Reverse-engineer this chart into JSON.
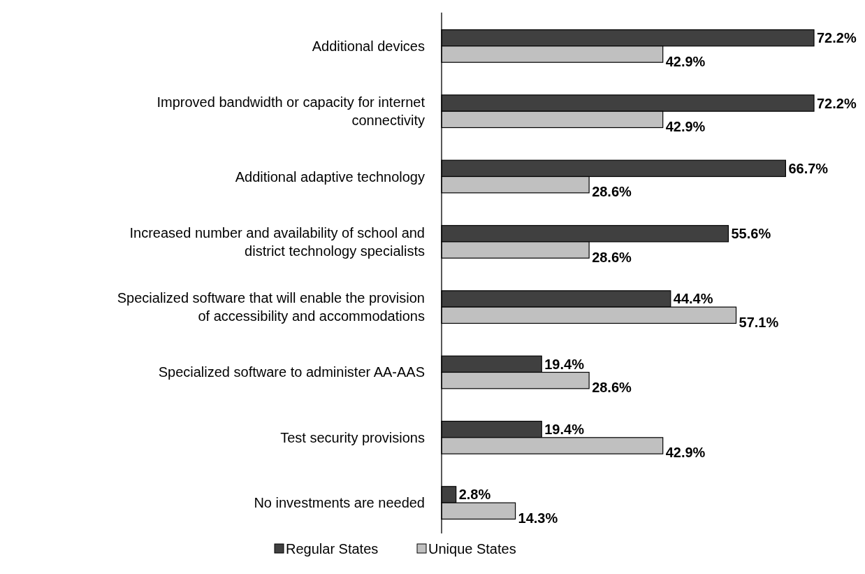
{
  "chart_data": {
    "type": "bar",
    "orientation": "horizontal",
    "categories": [
      "Additional devices",
      "Improved bandwidth or capacity for internet connectivity",
      "Additional adaptive technology",
      "Increased number and availability of school and district technology specialists",
      "Specialized software that will enable the provision of accessibility and accommodations",
      "Specialized software to administer AA-AAS",
      "Test security provisions",
      "No investments are needed"
    ],
    "series": [
      {
        "name": "Regular States",
        "color": "#404040",
        "values": [
          72.2,
          72.2,
          66.7,
          55.6,
          44.4,
          19.4,
          19.4,
          2.8
        ],
        "value_labels": [
          "72.2%",
          "72.2%",
          "66.7%",
          "55.6%",
          "44.4%",
          "19.4%",
          "19.4%",
          "2.8%"
        ]
      },
      {
        "name": "Unique States",
        "color": "#c0c0c0",
        "values": [
          42.9,
          42.9,
          28.6,
          28.6,
          57.1,
          28.6,
          42.9,
          14.3
        ],
        "value_labels": [
          "42.9%",
          "42.9%",
          "28.6%",
          "28.6%",
          "57.1%",
          "28.6%",
          "42.9%",
          "14.3%"
        ]
      }
    ],
    "legend": "bottom"
  }
}
